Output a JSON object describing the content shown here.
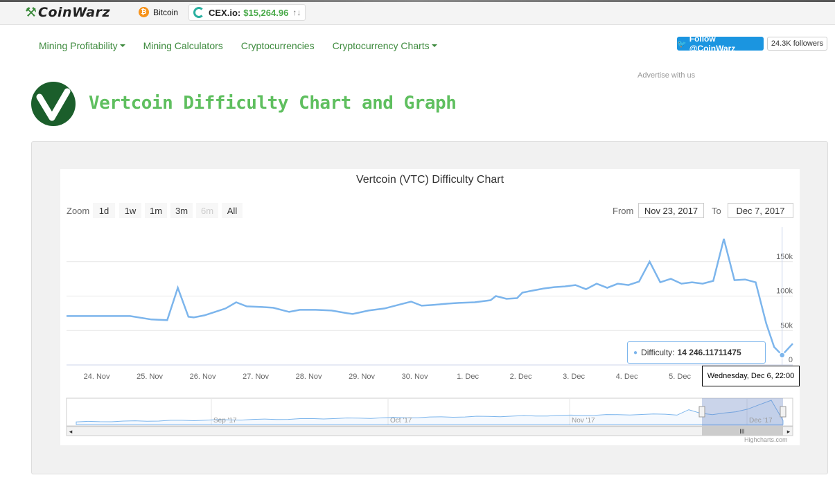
{
  "site": {
    "logo_text": "CoinWarz",
    "bitcoin_label": "Bitcoin",
    "exchange_name": "CEX.io:",
    "exchange_price": "$15,264.96",
    "exchange_arrows": "↑↓"
  },
  "nav": {
    "items": [
      {
        "label": "Mining Profitability",
        "dropdown": true
      },
      {
        "label": "Mining Calculators",
        "dropdown": false
      },
      {
        "label": "Cryptocurrencies",
        "dropdown": false
      },
      {
        "label": "Cryptocurrency Charts",
        "dropdown": true
      }
    ],
    "follow_label": "Follow @CoinWarz",
    "followers": "24.3K followers",
    "advertise": "Advertise with us"
  },
  "page": {
    "title": "Vertcoin Difficulty Chart and Graph"
  },
  "chart_controls": {
    "zoom_label": "Zoom",
    "zoom_buttons": [
      "1d",
      "1w",
      "1m",
      "3m",
      "6m",
      "All"
    ],
    "from_label": "From",
    "from_value": "Nov 23, 2017",
    "to_label": "To",
    "to_value": "Dec 7, 2017"
  },
  "tooltip": {
    "series_label": "Difficulty:",
    "value": "14 246.11711475",
    "date": "Wednesday, Dec 6, 22:00"
  },
  "credits": "Highcharts.com",
  "colors": {
    "line": "#7cb5ec",
    "brand_green": "#3d8a3d",
    "title_green": "#5fbf5f"
  },
  "chart_data": {
    "type": "line",
    "title": "Vertcoin (VTC) Difficulty Chart",
    "series": [
      {
        "name": "Difficulty",
        "x": [
          23.6,
          24.0,
          24.5,
          24.8,
          25.2,
          25.5,
          25.7,
          25.9,
          26.0,
          26.2,
          26.4,
          26.6,
          26.8,
          27.0,
          27.3,
          27.5,
          27.8,
          28.0,
          28.3,
          28.6,
          28.9,
          29.0,
          29.3,
          29.6,
          29.9,
          30.1,
          30.3,
          30.5,
          30.8,
          31.0,
          31.3,
          31.6,
          31.7,
          31.9,
          32.1,
          32.2,
          32.4,
          32.6,
          32.8,
          33.0,
          33.2,
          33.4,
          33.6,
          33.8,
          34.0,
          34.2,
          34.4,
          34.6,
          34.8,
          35.0,
          35.2,
          35.4,
          35.6,
          35.8,
          36.0,
          36.2,
          36.4,
          36.6,
          36.8,
          36.95,
          37.1,
          37.3
        ],
        "values": [
          71000,
          71000,
          71000,
          71000,
          66000,
          65000,
          112000,
          70000,
          69000,
          72000,
          77000,
          82000,
          91000,
          85000,
          84000,
          83000,
          77000,
          80000,
          80000,
          79000,
          75000,
          74000,
          79000,
          82000,
          88000,
          92000,
          86000,
          87000,
          89000,
          90000,
          91000,
          94000,
          100000,
          96000,
          97000,
          105000,
          108000,
          111000,
          113000,
          114000,
          116000,
          110000,
          118000,
          112000,
          118000,
          116000,
          121000,
          150000,
          120000,
          125000,
          118000,
          120000,
          118000,
          122000,
          183000,
          123000,
          124000,
          120000,
          60000,
          26000,
          14246,
          31000
        ]
      }
    ],
    "xlabel": "",
    "ylabel": "",
    "x_tick_labels": [
      "24. Nov",
      "25. Nov",
      "26. Nov",
      "27. Nov",
      "28. Nov",
      "29. Nov",
      "30. Nov",
      "1. Dec",
      "2. Dec",
      "3. Dec",
      "4. Dec",
      "5. Dec"
    ],
    "y_tick_labels": [
      "0",
      "50k",
      "100k",
      "150k"
    ],
    "ylim": [
      0,
      200000
    ],
    "grid": true,
    "navigator_labels": [
      "Sep '17",
      "Oct '17",
      "Nov '17",
      "Dec '17"
    ]
  }
}
